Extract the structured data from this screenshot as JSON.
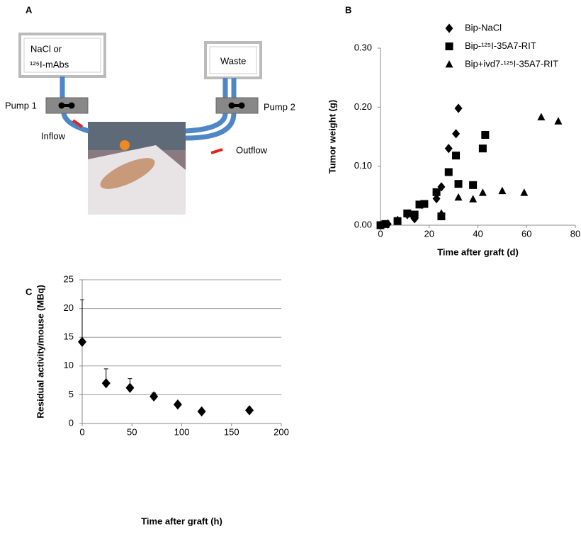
{
  "panels": {
    "a": "A",
    "b": "B",
    "c": "C"
  },
  "diagram": {
    "source_line1": "NaCl or",
    "source_line2": "¹²⁵I-mAbs",
    "waste": "Waste",
    "pump1": "Pump 1",
    "pump2": "Pump 2",
    "inflow": "Inflow",
    "outflow": "Outflow"
  },
  "chart_data": [
    {
      "type": "scatter",
      "xlabel": "Time after graft (d)",
      "ylabel": "Tumor weight (g)",
      "xlim": [
        0,
        80
      ],
      "xticks": [
        0,
        20,
        40,
        60,
        80
      ],
      "ylim": [
        0,
        0.3
      ],
      "yticks": [
        {
          "value": 0,
          "label": "0.00"
        },
        {
          "value": 0.1,
          "label": "0.10"
        },
        {
          "value": 0.2,
          "label": "0.20"
        },
        {
          "value": 0.3,
          "label": "0.30"
        }
      ],
      "grid": false,
      "legend": "top-right",
      "series": [
        {
          "name": "Bip-NaCl",
          "color": "#000000",
          "marker": "diamond",
          "x": [
            0,
            3,
            7,
            11,
            14,
            17,
            23,
            25,
            28,
            31,
            32
          ],
          "values": [
            0,
            0.002,
            0.008,
            0.018,
            0.011,
            0.035,
            0.045,
            0.065,
            0.13,
            0.155,
            0.198
          ]
        },
        {
          "name": "Bip-¹²⁵I-35A7-RIT",
          "color": "#000000",
          "marker": "square",
          "x": [
            0,
            2,
            7,
            11,
            14,
            16,
            18,
            23,
            25,
            28,
            31,
            32,
            38,
            42,
            43
          ],
          "values": [
            0,
            0.002,
            0.007,
            0.02,
            0.018,
            0.035,
            0.036,
            0.056,
            0.015,
            0.09,
            0.118,
            0.07,
            0.068,
            0.13,
            0.153
          ]
        },
        {
          "name": "Bip+ivd7-¹²⁵I-35A7-RIT",
          "color": "#000000",
          "marker": "triangle",
          "x": [
            25,
            32,
            38,
            42,
            50,
            59,
            66,
            73
          ],
          "values": [
            0.02,
            0.047,
            0.044,
            0.055,
            0.058,
            0.055,
            0.183,
            0.176
          ]
        }
      ]
    },
    {
      "type": "scatter",
      "xlabel": "Time after graft (h)",
      "ylabel": "Residual activity/mouse (MBq)",
      "xlim": [
        0,
        200
      ],
      "xticks": [
        0,
        50,
        100,
        150,
        200
      ],
      "ylim": [
        0,
        25
      ],
      "yticks": [
        0,
        5,
        10,
        15,
        20,
        25
      ],
      "grid": true,
      "series": [
        {
          "color": "#000000",
          "marker": "diamond",
          "x": [
            0,
            24,
            48,
            72,
            96,
            120,
            168
          ],
          "values": [
            14.2,
            7.0,
            6.2,
            4.7,
            3.3,
            2.1,
            2.3
          ],
          "errors": [
            7.3,
            2.5,
            1.6,
            0.6,
            null,
            null,
            null
          ]
        }
      ]
    }
  ]
}
